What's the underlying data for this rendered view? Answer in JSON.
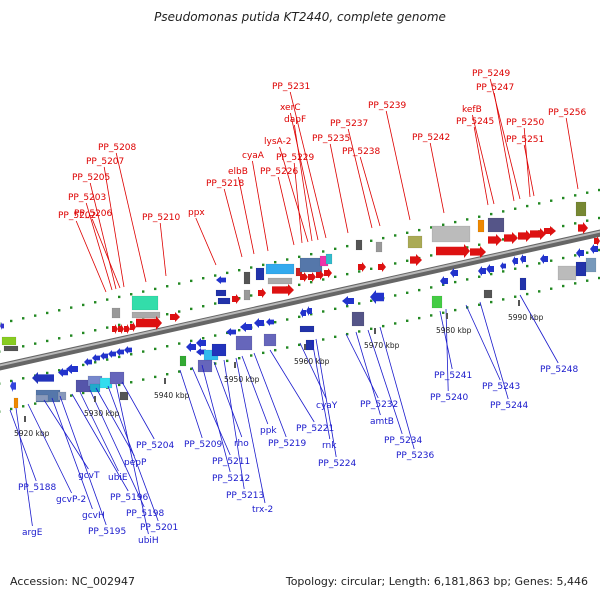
{
  "title": "Pseudomonas putida KT2440, complete genome",
  "footer": {
    "accession": "Accession: NC_002947",
    "summary": "Topology: circular; Length: 6,181,863 bp; Genes: 5,446"
  },
  "colors": {
    "forward_label": "#dd0000",
    "reverse_label": "#1a1acc",
    "backbone": "#888888",
    "tick": "#228822"
  },
  "axis_labels": [
    "5920 kbp",
    "5930 kbp",
    "5940 kbp",
    "5950 kbp",
    "5960 kbp",
    "5970 kbp",
    "5980 kbp",
    "5990 kbp"
  ],
  "forward_labels": [
    "PP_5202",
    "PP_5203",
    "PP_5205",
    "PP_5206",
    "PP_5207",
    "PP_5208",
    "PP_5210",
    "ppx",
    "PP_5218",
    "elbB",
    "cyaA",
    "PP_5226",
    "PP_5229",
    "lysA-2",
    "dapF",
    "xerC",
    "PP_5231",
    "PP_5235",
    "PP_5237",
    "PP_5238",
    "PP_5239",
    "PP_5242",
    "PP_5245",
    "kefB",
    "PP_5247",
    "PP_5249",
    "PP_5250",
    "PP_5251",
    "PP_5256"
  ],
  "reverse_labels": [
    "PP_5188",
    "argE",
    "gcvP-2",
    "gcvT",
    "gcvH",
    "PP_5195",
    "PP_5196",
    "ubiE",
    "PP_5198",
    "pepP",
    "PP_5201",
    "ubiH",
    "PP_5204",
    "PP_5209",
    "PP_5211",
    "PP_5212",
    "rho",
    "PP_5213",
    "trx-2",
    "ppk",
    "PP_5219",
    "PP_5221",
    "cyaY",
    "rnk",
    "PP_5224",
    "PP_5232",
    "amtB",
    "PP_5234",
    "PP_5236",
    "PP_5241",
    "PP_5240",
    "PP_5243",
    "PP_5244",
    "PP_5248"
  ]
}
